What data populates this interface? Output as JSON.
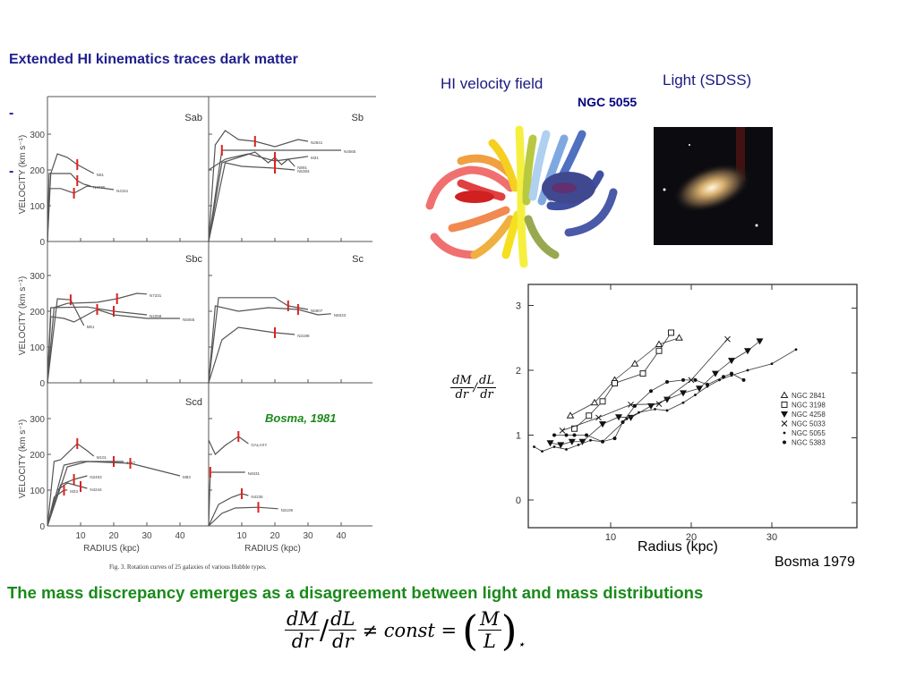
{
  "slide": {
    "title": "Extended HI kinematics traces dark matter",
    "bullets": [
      "-",
      "-"
    ],
    "hi_label": "HI velocity field",
    "light_label": "Light (SDSS)",
    "galaxy_name": "NGC 5055",
    "bosma1981": "Bosma, 1981",
    "radius_label": "Radius (kpc)",
    "bosma1979": "Bosma 1979",
    "conclusion": "The mass discrepancy emerges as a disagreement between light and mass distributions",
    "ylabel_math": {
      "n1": "dM",
      "d1": "dr",
      "slash": "/",
      "n2": "dL",
      "d2": "dr"
    },
    "formula": {
      "n1": "dM",
      "d1": "dr",
      "slash": "/",
      "n2": "dL",
      "d2": "dr",
      "rel": "≠ const =",
      "n3": "M",
      "d3": "L",
      "sub": "⋆"
    }
  },
  "rotation_figure": {
    "caption": "Fig. 3. Rotation curves of 25 galaxies of various Hubble types.",
    "ylabel": "VELOCITY (km s⁻¹)",
    "xlabel": "RADIUS (kpc)",
    "yticks": [
      "0",
      "100",
      "200",
      "300"
    ],
    "xticks": [
      "10",
      "20",
      "30",
      "40"
    ],
    "panels": [
      {
        "type": "Sab",
        "curves": [
          {
            "label": "N81",
            "pts": [
              [
                0,
                0
              ],
              [
                1,
                190
              ],
              [
                3,
                245
              ],
              [
                6,
                235
              ],
              [
                9,
                215
              ],
              [
                12,
                200
              ],
              [
                14,
                190
              ]
            ]
          },
          {
            "label": "N4736",
            "pts": [
              [
                0,
                0
              ],
              [
                0.5,
                190
              ],
              [
                7,
                190
              ],
              [
                9,
                170
              ],
              [
                11,
                160
              ],
              [
                13,
                155
              ]
            ]
          },
          {
            "label": "N4151",
            "pts": [
              [
                0,
                0
              ],
              [
                0.5,
                148
              ],
              [
                4,
                148
              ],
              [
                8,
                135
              ],
              [
                12,
                155
              ],
              [
                20,
                145
              ]
            ]
          }
        ]
      },
      {
        "type": "Sb",
        "curves": [
          {
            "label": "N2841",
            "pts": [
              [
                0,
                0
              ],
              [
                2,
                270
              ],
              [
                5,
                310
              ],
              [
                9,
                285
              ],
              [
                14,
                280
              ],
              [
                20,
                265
              ],
              [
                27,
                285
              ],
              [
                30,
                280
              ]
            ]
          },
          {
            "label": "N4565",
            "pts": [
              [
                0,
                0
              ],
              [
                4,
                255
              ],
              [
                40,
                255
              ]
            ]
          },
          {
            "label": "M31",
            "pts": [
              [
                0,
                200
              ],
              [
                5,
                230
              ],
              [
                12,
                245
              ],
              [
                20,
                225
              ],
              [
                28,
                235
              ],
              [
                30,
                238
              ]
            ]
          },
          {
            "label": "N891",
            "pts": [
              [
                0,
                0
              ],
              [
                4,
                220
              ],
              [
                14,
                250
              ],
              [
                18,
                220
              ],
              [
                20,
                235
              ],
              [
                22,
                215
              ],
              [
                24,
                230
              ],
              [
                26,
                210
              ]
            ]
          },
          {
            "label": "N5383",
            "pts": [
              [
                0,
                0
              ],
              [
                5,
                220
              ],
              [
                10,
                210
              ],
              [
                20,
                205
              ],
              [
                26,
                200
              ]
            ]
          }
        ]
      },
      {
        "type": "Sbc",
        "curves": [
          {
            "label": "N7331",
            "pts": [
              [
                0,
                0
              ],
              [
                2,
                210
              ],
              [
                6,
                222
              ],
              [
                15,
                225
              ],
              [
                21,
                235
              ],
              [
                27,
                250
              ],
              [
                30,
                248
              ]
            ]
          },
          {
            "label": "N4258",
            "pts": [
              [
                0,
                0
              ],
              [
                1,
                210
              ],
              [
                12,
                212
              ],
              [
                20,
                200
              ],
              [
                30,
                190
              ]
            ]
          },
          {
            "label": "N5055",
            "pts": [
              [
                0,
                0
              ],
              [
                1,
                185
              ],
              [
                5,
                180
              ],
              [
                8,
                170
              ],
              [
                15,
                205
              ],
              [
                20,
                190
              ],
              [
                30,
                180
              ],
              [
                40,
                180
              ]
            ]
          },
          {
            "label": "M51",
            "pts": [
              [
                0,
                0
              ],
              [
                3,
                235
              ],
              [
                7,
                232
              ],
              [
                11,
                160
              ]
            ]
          }
        ]
      },
      {
        "type": "Sc",
        "curves": [
          {
            "label": "N5907",
            "pts": [
              [
                0,
                0
              ],
              [
                3,
                238
              ],
              [
                20,
                238
              ],
              [
                24,
                215
              ],
              [
                30,
                205
              ]
            ]
          },
          {
            "label": "N5033",
            "pts": [
              [
                0,
                0
              ],
              [
                2,
                215
              ],
              [
                9,
                200
              ],
              [
                18,
                210
              ],
              [
                27,
                205
              ],
              [
                33,
                190
              ],
              [
                37,
                193
              ]
            ]
          },
          {
            "label": "N3198",
            "pts": [
              [
                0,
                0
              ],
              [
                4,
                120
              ],
              [
                9,
                155
              ],
              [
                20,
                140
              ],
              [
                26,
                135
              ]
            ]
          }
        ]
      },
      {
        "type": "Scd",
        "curves": [
          {
            "label": "M101",
            "pts": [
              [
                0,
                0
              ],
              [
                2,
                180
              ],
              [
                4,
                185
              ],
              [
                9,
                230
              ],
              [
                12,
                210
              ],
              [
                14,
                195
              ]
            ]
          },
          {
            "label": "1342",
            "pts": [
              [
                0,
                0
              ],
              [
                5,
                170
              ],
              [
                10,
                180
              ],
              [
                20,
                180
              ],
              [
                23,
                180
              ]
            ]
          },
          {
            "label": "M83",
            "pts": [
              [
                0,
                0
              ],
              [
                6,
                165
              ],
              [
                12,
                180
              ],
              [
                25,
                175
              ],
              [
                40,
                140
              ]
            ]
          },
          {
            "label": "N2403",
            "pts": [
              [
                0,
                0
              ],
              [
                4,
                115
              ],
              [
                8,
                130
              ],
              [
                12,
                140
              ]
            ]
          },
          {
            "label": "N4244",
            "pts": [
              [
                0,
                0
              ],
              [
                3,
                100
              ],
              [
                6,
                120
              ],
              [
                10,
                110
              ],
              [
                12,
                105
              ]
            ]
          },
          {
            "label": "M33",
            "pts": [
              [
                0,
                0
              ],
              [
                2,
                80
              ],
              [
                5,
                100
              ],
              [
                6,
                100
              ]
            ]
          }
        ]
      },
      {
        "type": "",
        "curves": [
          {
            "label": "GALAXY",
            "pts": [
              [
                0,
                240
              ],
              [
                2,
                200
              ],
              [
                5,
                225
              ],
              [
                9,
                250
              ],
              [
                12,
                230
              ]
            ]
          },
          {
            "label": "N4631",
            "pts": [
              [
                0,
                0
              ],
              [
                0.5,
                150
              ],
              [
                11,
                150
              ]
            ]
          },
          {
            "label": "N4236",
            "pts": [
              [
                0,
                0
              ],
              [
                3,
                60
              ],
              [
                7,
                80
              ],
              [
                10,
                90
              ],
              [
                12,
                85
              ]
            ]
          },
          {
            "label": "N3109",
            "pts": [
              [
                0,
                0
              ],
              [
                4,
                35
              ],
              [
                8,
                50
              ],
              [
                15,
                52
              ],
              [
                21,
                48
              ]
            ]
          }
        ]
      }
    ]
  },
  "chart_data": {
    "type": "scatter",
    "xlabel": "Radius (kpc)",
    "ylabel": "dM/dr / dL/dr",
    "xticks": [
      10,
      20,
      30
    ],
    "yticks": [
      0,
      1,
      2,
      3
    ],
    "xlim": [
      0,
      40
    ],
    "ylim": [
      -0.25,
      3.25
    ],
    "legend_position": "right",
    "series": [
      {
        "name": "NGC 2841",
        "marker": "triangle-open",
        "x": [
          5,
          8,
          10.5,
          13,
          16,
          18.5
        ],
        "y": [
          1.3,
          1.5,
          1.85,
          2.1,
          2.4,
          2.5
        ]
      },
      {
        "name": "NGC 3198",
        "marker": "square-open",
        "x": [
          5.5,
          7.3,
          9,
          10.5,
          14,
          16,
          17.5
        ],
        "y": [
          1.1,
          1.3,
          1.52,
          1.8,
          1.95,
          2.3,
          2.58
        ]
      },
      {
        "name": "NGC 4258",
        "marker": "triangle-filled",
        "x": [
          2.5,
          3.8,
          5.2,
          6.5,
          9,
          11,
          12.5,
          15,
          17,
          19,
          21,
          23,
          25,
          27,
          28.5
        ],
        "y": [
          0.88,
          0.85,
          0.9,
          0.9,
          1.17,
          1.28,
          1.27,
          1.45,
          1.55,
          1.65,
          1.72,
          1.95,
          2.15,
          2.3,
          2.45
        ]
      },
      {
        "name": "NGC 5033",
        "marker": "x",
        "x": [
          4,
          8.5,
          12.5,
          16,
          20,
          24.5
        ],
        "y": [
          1.07,
          1.27,
          1.47,
          1.48,
          1.85,
          2.48
        ]
      },
      {
        "name": "NGC 5055",
        "marker": "dot-small",
        "x": [
          0.5,
          1.5,
          3,
          4.5,
          6,
          7.5,
          9,
          12,
          13.5,
          15.5,
          17,
          19,
          20.5,
          22,
          23.5,
          25,
          27,
          30,
          33
        ],
        "y": [
          0.82,
          0.75,
          0.82,
          0.78,
          0.85,
          0.92,
          0.9,
          1.25,
          1.35,
          1.4,
          1.38,
          1.5,
          1.62,
          1.75,
          1.85,
          1.92,
          2.0,
          2.1,
          2.32
        ]
      },
      {
        "name": "NGC 5383",
        "marker": "dot",
        "x": [
          3,
          4.5,
          5.5,
          7,
          9,
          10.5,
          11.5,
          13,
          15,
          17,
          19,
          20.5,
          22,
          24,
          25,
          26.5
        ],
        "y": [
          1.0,
          1.0,
          1.0,
          1.0,
          0.9,
          0.95,
          1.2,
          1.45,
          1.68,
          1.82,
          1.85,
          1.85,
          1.78,
          1.9,
          1.95,
          1.85
        ]
      }
    ]
  },
  "colors": {
    "title": "#1f1f8f",
    "conclusion": "#1a8a1a",
    "marker": "#e02020"
  }
}
